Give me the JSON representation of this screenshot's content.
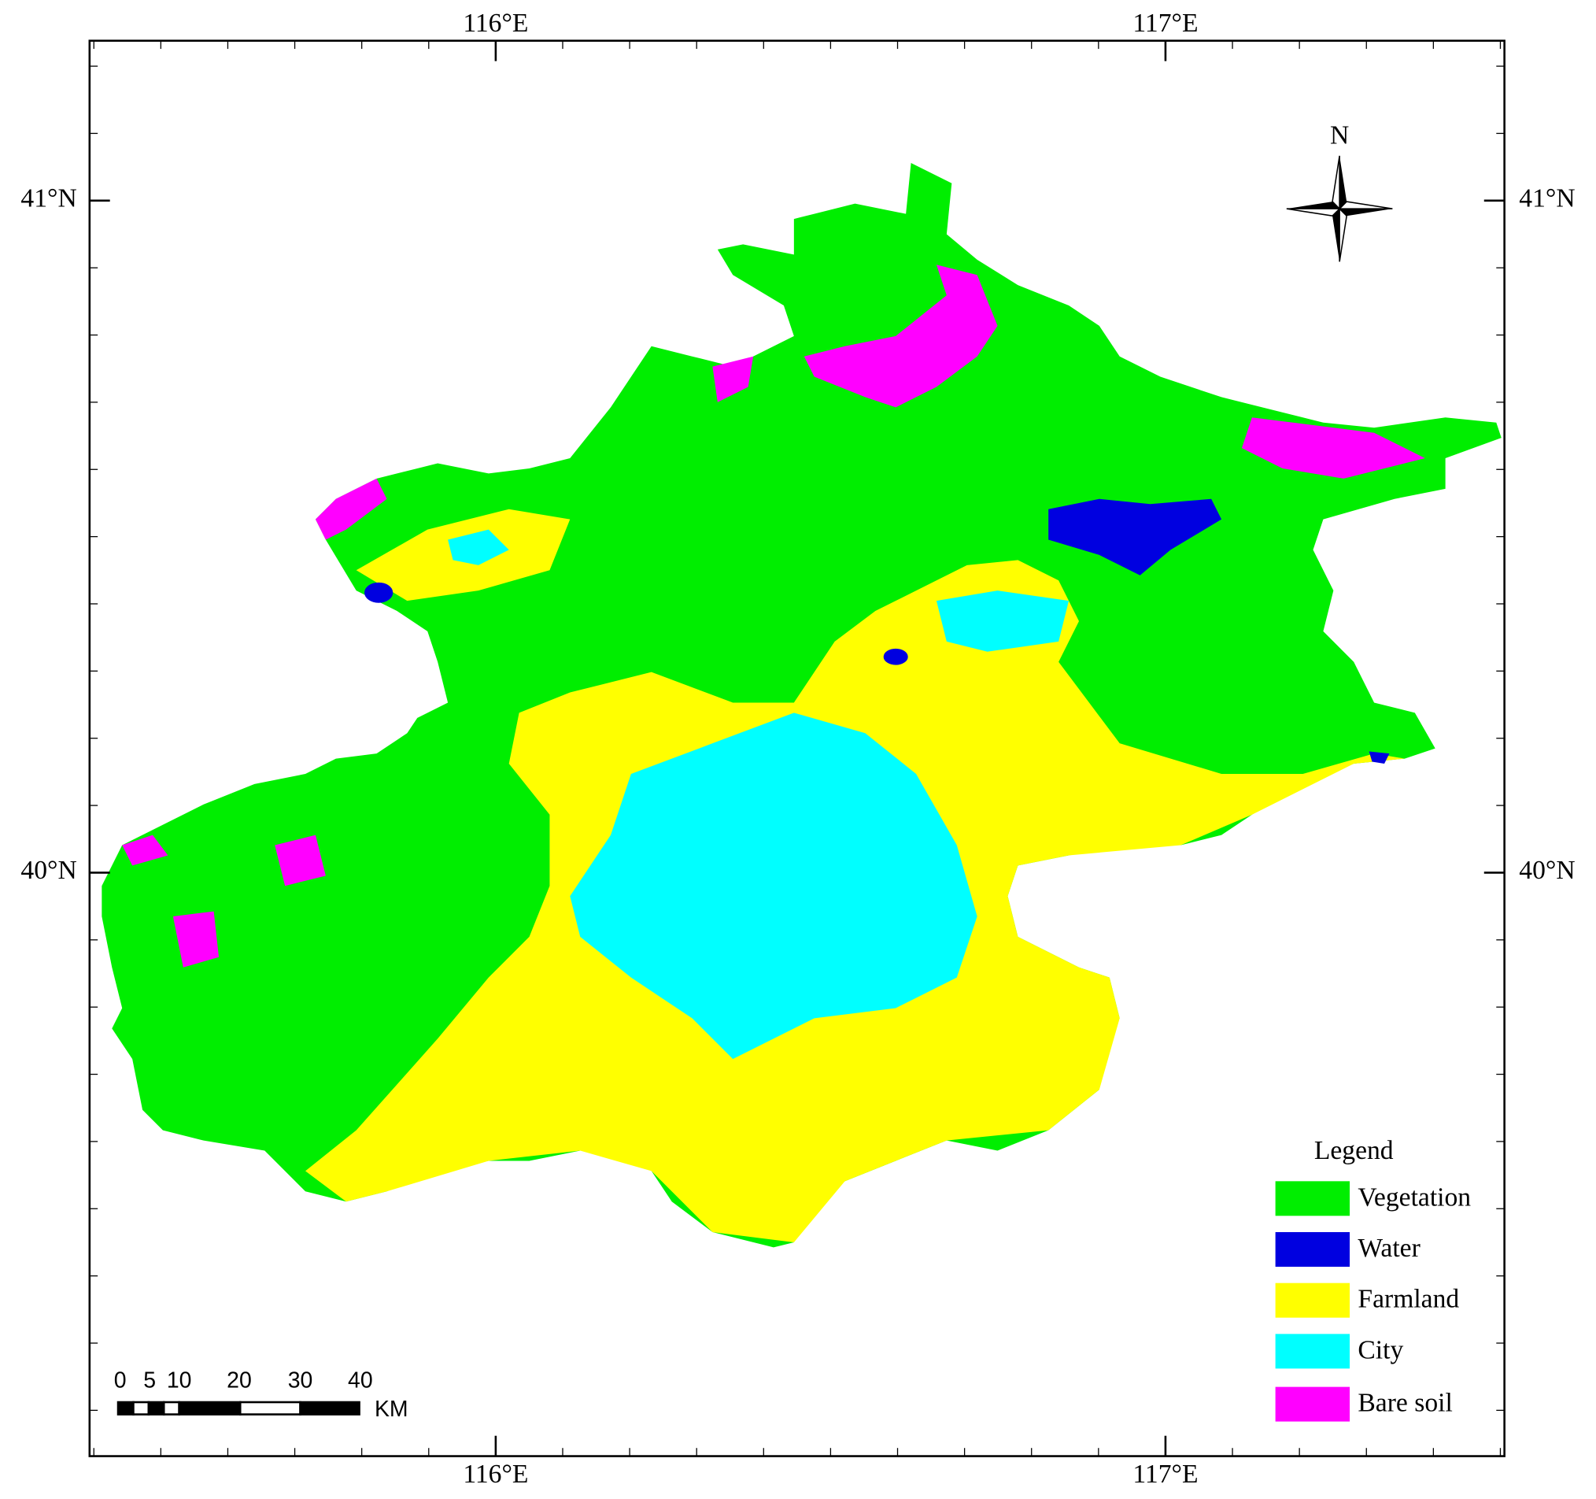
{
  "map": {
    "lon_labels": [
      "116°E",
      "117°E"
    ],
    "lat_labels": [
      "41°N",
      "40°N"
    ],
    "north_label": "N",
    "legend": {
      "title": "Legend",
      "items": [
        {
          "label": "Vegetation",
          "color": "#00ee00"
        },
        {
          "label": "Water",
          "color": "#0000e0"
        },
        {
          "label": "Farmland",
          "color": "#ffff00"
        },
        {
          "label": "City",
          "color": "#00ffff"
        },
        {
          "label": "Bare soil",
          "color": "#ff00ff"
        }
      ]
    },
    "scale_bar": {
      "labels": [
        "0",
        "5",
        "10",
        "20",
        "30",
        "40"
      ],
      "unit": "KM"
    }
  }
}
